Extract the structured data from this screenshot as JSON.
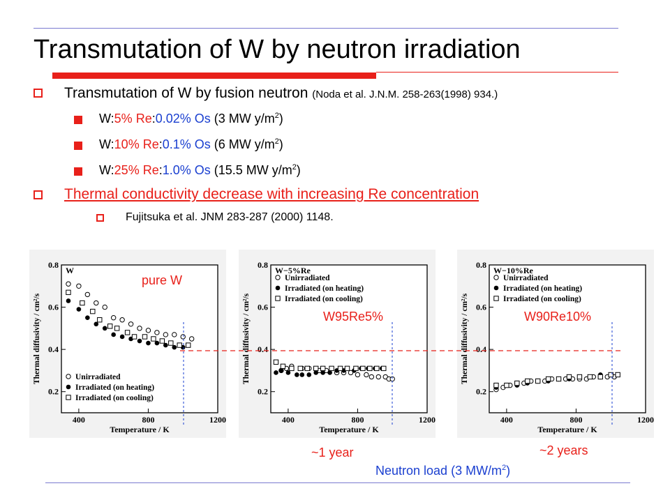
{
  "slide": {
    "title": "Transmutation of W by neutron irradiation",
    "bullet1": {
      "main": "Transmutation of W by fusion neutron",
      "ref": "(Noda et al. J.N.M. 258-263(1998) 934.)"
    },
    "sub_items": [
      {
        "w": "W:",
        "re": "5% Re",
        "sep": ":",
        "os": "0.02% Os",
        "load": " (3 MW y/m",
        "sup": "2",
        "close": ")"
      },
      {
        "w": "W:",
        "re": "10% Re",
        "sep": ":",
        "os": "0.1% Os",
        "load": " (6 MW y/m",
        "sup": "2",
        "close": ")"
      },
      {
        "w": "W:",
        "re": "25% Re",
        "sep": ":",
        "os": "1.0% Os",
        "load": " (15.5 MW y/m",
        "sup": "2",
        "close": ")"
      }
    ],
    "bullet2": "Thermal conductivity decrease with increasing Re concentration",
    "bullet2_sub": "Fujitsuka et al. JNM 283-287 (2000) 1148.",
    "labels": {
      "pure_w": "pure W",
      "w95": "W95Re5%",
      "w90": "W90Re10%",
      "one_year": "~1 year",
      "two_years": "~2 years",
      "neutron_load": "Neutron load (3 MW/m",
      "neutron_sup": "2",
      "neutron_close": ")"
    },
    "colors": {
      "accent_red": "#e8201a",
      "blue": "#1a3fd0",
      "rule": "#7a7ad0"
    }
  },
  "chart_data": [
    {
      "type": "scatter",
      "title": "W",
      "xlabel": "Temperature / K",
      "ylabel": "Thermal diffusivity / cm²/s",
      "xlim": [
        300,
        1200
      ],
      "ylim": [
        0.1,
        0.8
      ],
      "xticks": [
        "400",
        "800",
        "1200"
      ],
      "yticks": [
        "0.2",
        "0.4",
        "0.6",
        "0.8"
      ],
      "legend": [
        "Unirradiated",
        "Irradiated   (on heating)",
        "Irradiated   (on cooling)"
      ],
      "legend_position": "bottom-left",
      "series": [
        {
          "name": "Unirradiated",
          "marker": "open-circle",
          "x": [
            340,
            400,
            450,
            500,
            550,
            600,
            650,
            700,
            750,
            800,
            850,
            900,
            950,
            1000,
            1050
          ],
          "y": [
            0.71,
            0.7,
            0.66,
            0.62,
            0.6,
            0.55,
            0.54,
            0.52,
            0.5,
            0.49,
            0.48,
            0.47,
            0.47,
            0.46,
            0.45
          ]
        },
        {
          "name": "Irradiated   (on heating)",
          "marker": "filled-circle",
          "x": [
            340,
            400,
            450,
            500,
            550,
            600,
            650,
            700,
            750,
            800,
            850,
            900,
            950,
            1000
          ],
          "y": [
            0.63,
            0.59,
            0.55,
            0.52,
            0.5,
            0.47,
            0.46,
            0.45,
            0.44,
            0.43,
            0.43,
            0.42,
            0.41,
            0.41
          ]
        },
        {
          "name": "Irradiated   (on cooling)",
          "marker": "open-square",
          "x": [
            340,
            420,
            480,
            520,
            580,
            620,
            680,
            720,
            780,
            830,
            880,
            930,
            980,
            1030
          ],
          "y": [
            0.67,
            0.62,
            0.58,
            0.54,
            0.51,
            0.5,
            0.48,
            0.46,
            0.46,
            0.45,
            0.44,
            0.43,
            0.42,
            0.42
          ]
        }
      ]
    },
    {
      "type": "scatter",
      "title": "W−5%Re",
      "xlabel": "Temperature / K",
      "ylabel": "Thermal diffusivity / cm²/s",
      "xlim": [
        300,
        1200
      ],
      "ylim": [
        0.1,
        0.8
      ],
      "xticks": [
        "400",
        "800",
        "1200"
      ],
      "yticks": [
        "0.2",
        "0.4",
        "0.6",
        "0.8"
      ],
      "legend": [
        "Unirradiated",
        "Irradiated   (on heating)",
        "Irradiated   (on cooling)"
      ],
      "legend_position": "top-left",
      "series": [
        {
          "name": "Unirradiated",
          "marker": "open-circle",
          "x": [
            360,
            390,
            420,
            480,
            520,
            580,
            620,
            680,
            720,
            760,
            800,
            850,
            880,
            920,
            960,
            980,
            1000
          ],
          "y": [
            0.3,
            0.31,
            0.32,
            0.31,
            0.31,
            0.3,
            0.3,
            0.29,
            0.29,
            0.29,
            0.28,
            0.28,
            0.27,
            0.27,
            0.27,
            0.26,
            0.26
          ]
        },
        {
          "name": "Irradiated   (on heating)",
          "marker": "filled-circle",
          "x": [
            330,
            360,
            400,
            450,
            480,
            520,
            560,
            600,
            640,
            680,
            720,
            780,
            820,
            860,
            900,
            940
          ],
          "y": [
            0.29,
            0.3,
            0.29,
            0.28,
            0.28,
            0.28,
            0.29,
            0.29,
            0.29,
            0.3,
            0.3,
            0.3,
            0.31,
            0.31,
            0.31,
            0.31
          ]
        },
        {
          "name": "Irradiated   (on cooling)",
          "marker": "open-square",
          "x": [
            330,
            370,
            420,
            470,
            510,
            560,
            600,
            650,
            700,
            740,
            790,
            830,
            870,
            910,
            950
          ],
          "y": [
            0.34,
            0.32,
            0.31,
            0.31,
            0.31,
            0.31,
            0.31,
            0.31,
            0.31,
            0.31,
            0.31,
            0.31,
            0.31,
            0.31,
            0.31
          ]
        }
      ]
    },
    {
      "type": "scatter",
      "title": "W−10%Re",
      "xlabel": "Temperature / K",
      "ylabel": "Thermal diffusivity / cm²/s",
      "xlim": [
        300,
        1200
      ],
      "ylim": [
        0.1,
        0.8
      ],
      "xticks": [
        "400",
        "800",
        "1200"
      ],
      "yticks": [
        "0.2",
        "0.4",
        "0.6",
        "0.8"
      ],
      "legend": [
        "Unirradiated",
        "Irradiated   (on heating)",
        "Irradiated   (on cooling)"
      ],
      "legend_position": "top-left",
      "series": [
        {
          "name": "Unirradiated",
          "marker": "open-circle",
          "x": [
            340,
            380,
            420,
            460,
            500,
            540,
            580,
            620,
            660,
            700,
            740,
            780,
            820,
            860,
            900,
            940,
            980,
            1020
          ],
          "y": [
            0.21,
            0.22,
            0.23,
            0.24,
            0.24,
            0.25,
            0.25,
            0.25,
            0.26,
            0.26,
            0.26,
            0.26,
            0.26,
            0.26,
            0.27,
            0.27,
            0.27,
            0.27
          ]
        },
        {
          "name": "Irradiated   (on heating)",
          "marker": "filled-circle",
          "x": [
            340,
            400,
            460,
            520,
            580,
            640,
            700,
            760,
            820,
            880,
            940,
            1000
          ],
          "y": [
            0.22,
            0.23,
            0.23,
            0.24,
            0.25,
            0.25,
            0.26,
            0.26,
            0.27,
            0.27,
            0.28,
            0.28
          ]
        },
        {
          "name": "Irradiated   (on cooling)",
          "marker": "open-square",
          "x": [
            340,
            400,
            460,
            520,
            580,
            640,
            700,
            760,
            820,
            880,
            940,
            1000,
            1040
          ],
          "y": [
            0.23,
            0.23,
            0.24,
            0.25,
            0.25,
            0.26,
            0.26,
            0.27,
            0.27,
            0.27,
            0.27,
            0.28,
            0.28
          ]
        }
      ]
    }
  ]
}
